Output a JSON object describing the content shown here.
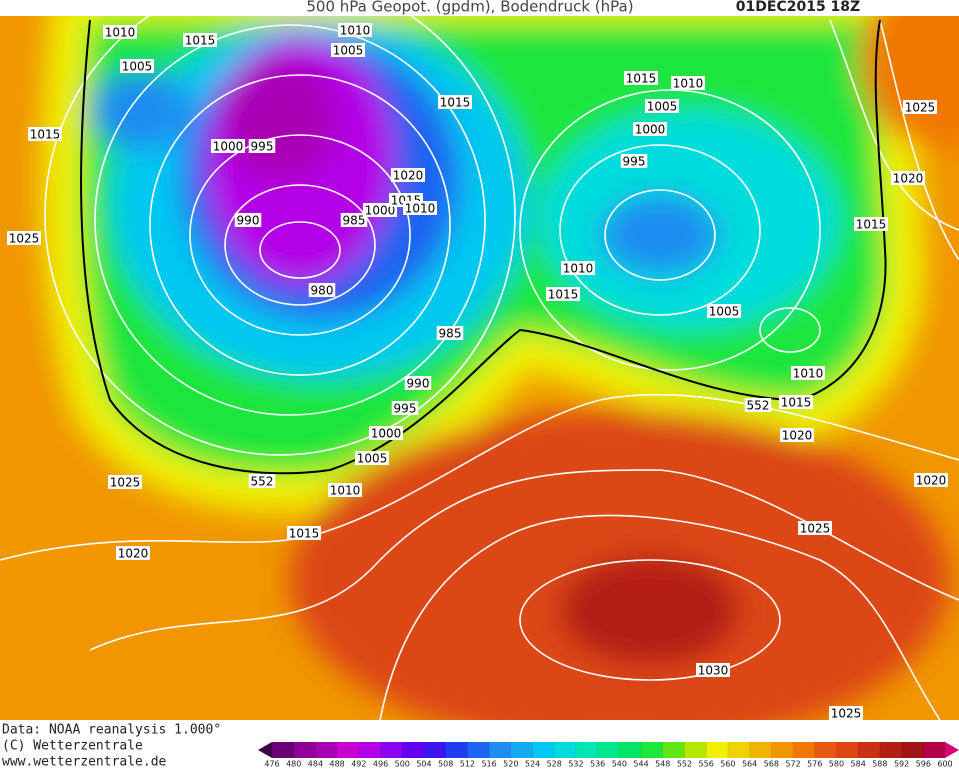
{
  "header": {
    "title": "500 hPa Geopot. (gpdm), Bodendruck (hPa)",
    "date": "01DEC2015 18Z"
  },
  "footer": [
    "Data: NOAA reanalysis 1.000°",
    "(C) Wetterzentrale",
    "www.wetterzentrale.de"
  ],
  "colorbar": {
    "values": [
      476,
      480,
      484,
      488,
      492,
      496,
      500,
      504,
      508,
      512,
      516,
      520,
      524,
      528,
      532,
      536,
      540,
      544,
      548,
      552,
      556,
      560,
      564,
      568,
      572,
      576,
      580,
      584,
      588,
      592,
      596,
      600
    ],
    "colors": [
      "#3c0046",
      "#6a0078",
      "#8c0096",
      "#aa00b4",
      "#c800d2",
      "#b400e6",
      "#8c00f0",
      "#6400f0",
      "#3c14f0",
      "#1e3cf0",
      "#1e64f0",
      "#1e8cf0",
      "#14aaf0",
      "#00c8f0",
      "#00dcdc",
      "#00e6b4",
      "#00e68c",
      "#00e664",
      "#1ee63c",
      "#64e614",
      "#b4e600",
      "#f0f000",
      "#f0d200",
      "#f0b400",
      "#f09600",
      "#f07800",
      "#e65a14",
      "#dc4614",
      "#c83214",
      "#b41e14",
      "#a01414",
      "#b40046",
      "#dc0078"
    ]
  },
  "isobars": {
    "labels": [
      1010,
      1015,
      1010,
      1005,
      1005,
      1015,
      1000,
      995,
      990,
      985,
      1000,
      1015,
      1010,
      1020,
      1015,
      980,
      985,
      990,
      995,
      1000,
      1005,
      1010,
      552,
      1025,
      1015,
      1020,
      1025,
      1015,
      1010,
      1005,
      1000,
      995,
      1025,
      1020,
      1015,
      1010,
      1015,
      1005,
      1010,
      1015,
      552,
      1020,
      1020,
      1025,
      1030,
      1025
    ]
  }
}
